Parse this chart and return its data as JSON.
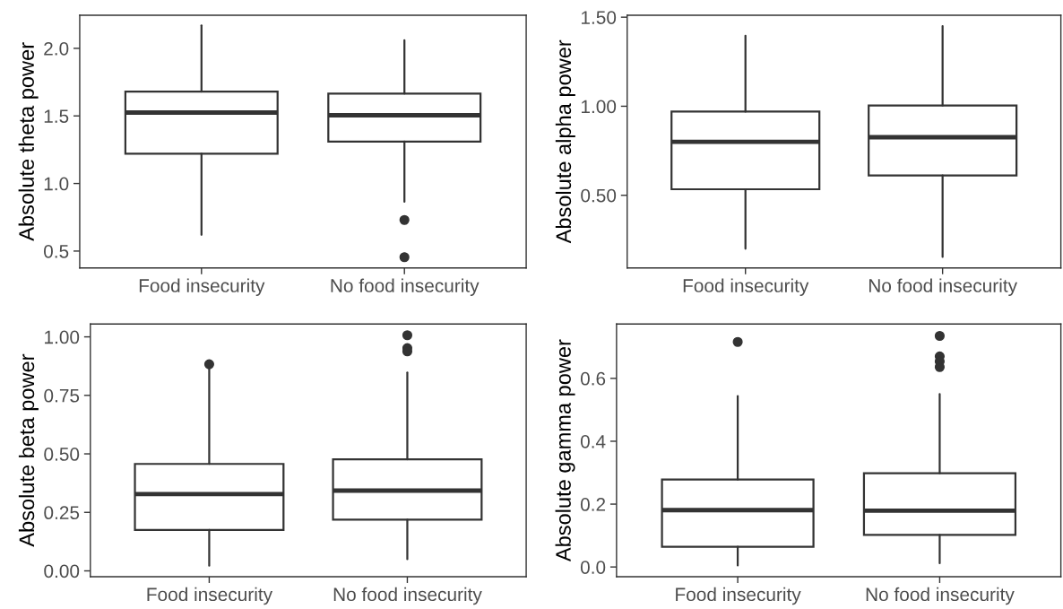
{
  "chart_data": [
    {
      "type": "box",
      "categories": [
        "Food insecurity",
        "No food insecurity"
      ],
      "ylabel": "Absolute theta power",
      "ylim": [
        0.375,
        2.245
      ],
      "yticks": [
        {
          "value": 0.5,
          "label": "0.5"
        },
        {
          "value": 1,
          "label": "1.0"
        },
        {
          "value": 1.5,
          "label": "1.5"
        },
        {
          "value": 2,
          "label": "2.0"
        }
      ],
      "grid": false,
      "color": "#333333",
      "boxes": [
        {
          "low": 0.62,
          "q1": 1.22,
          "median": 1.525,
          "q3": 1.68,
          "high": 2.17
        },
        {
          "low": 0.865,
          "q1": 1.31,
          "median": 1.505,
          "q3": 1.665,
          "high": 2.06,
          "outliers": [
            0.73,
            0.455
          ]
        }
      ]
    },
    {
      "type": "box",
      "categories": [
        "Food insecurity",
        "No food insecurity"
      ],
      "ylabel": "Absolute alpha power",
      "ylim": [
        0.092,
        1.511
      ],
      "yticks": [
        {
          "value": 0.5,
          "label": "0.50"
        },
        {
          "value": 1,
          "label": "1.00"
        },
        {
          "value": 1.5,
          "label": "1.50"
        }
      ],
      "grid": false,
      "color": "#333333",
      "boxes": [
        {
          "low": 0.2,
          "q1": 0.534,
          "median": 0.8,
          "q3": 0.97,
          "high": 1.396
        },
        {
          "low": 0.154,
          "q1": 0.611,
          "median": 0.826,
          "q3": 1.004,
          "high": 1.45
        }
      ]
    },
    {
      "type": "box",
      "categories": [
        "Food insecurity",
        "No food insecurity"
      ],
      "ylabel": "Absolute beta power",
      "ylim": [
        -0.025,
        1.055
      ],
      "yticks": [
        {
          "value": 0,
          "label": "0.00"
        },
        {
          "value": 0.25,
          "label": "0.25"
        },
        {
          "value": 0.5,
          "label": "0.50"
        },
        {
          "value": 0.75,
          "label": "0.75"
        },
        {
          "value": 1,
          "label": "1.00"
        }
      ],
      "grid": false,
      "color": "#333333",
      "boxes": [
        {
          "low": 0.022,
          "q1": 0.175,
          "median": 0.328,
          "q3": 0.457,
          "high": 0.87,
          "outliers": [
            0.883
          ]
        },
        {
          "low": 0.05,
          "q1": 0.219,
          "median": 0.343,
          "q3": 0.477,
          "high": 0.848,
          "outliers": [
            1.007,
            0.952,
            0.938
          ]
        }
      ]
    },
    {
      "type": "box",
      "categories": [
        "Food insecurity",
        "No food insecurity"
      ],
      "ylabel": "Absolute gamma power",
      "ylim": [
        -0.031,
        0.773
      ],
      "yticks": [
        {
          "value": 0,
          "label": "0.0"
        },
        {
          "value": 0.2,
          "label": "0.2"
        },
        {
          "value": 0.4,
          "label": "0.4"
        },
        {
          "value": 0.6,
          "label": "0.6"
        }
      ],
      "grid": false,
      "color": "#333333",
      "boxes": [
        {
          "low": 0.005,
          "q1": 0.064,
          "median": 0.181,
          "q3": 0.278,
          "high": 0.544,
          "outliers": [
            0.716
          ]
        },
        {
          "low": 0.012,
          "q1": 0.102,
          "median": 0.179,
          "q3": 0.298,
          "high": 0.55,
          "outliers": [
            0.735,
            0.67,
            0.654,
            0.636
          ]
        }
      ]
    }
  ]
}
